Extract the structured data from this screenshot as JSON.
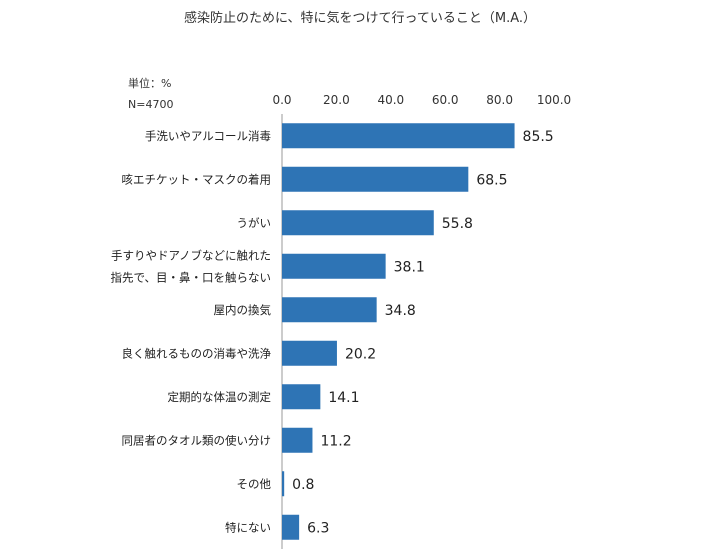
{
  "chart_data": {
    "type": "bar",
    "orientation": "horizontal",
    "title": "感染防止のために、特に気をつけて行っていること（M.A.）",
    "unit_note": "単位：%",
    "sample_note": "N=4700",
    "xlim": [
      0,
      100
    ],
    "x_ticks": [
      "0.0",
      "20.0",
      "40.0",
      "60.0",
      "80.0",
      "100.0"
    ],
    "x_tick_values": [
      0,
      20,
      40,
      60,
      80,
      100
    ],
    "grid": false,
    "bar_color": "#2e74b5",
    "categories": [
      [
        "手洗いやアルコール消毒"
      ],
      [
        "咳エチケット・マスクの着用"
      ],
      [
        "うがい"
      ],
      [
        "手すりやドアノブなどに触れた",
        "指先で、目・鼻・口を触らない"
      ],
      [
        "屋内の換気"
      ],
      [
        "良く触れるものの消毒や洗浄"
      ],
      [
        "定期的な体温の測定"
      ],
      [
        "同居者のタオル類の使い分け"
      ],
      [
        "その他"
      ],
      [
        "特にない"
      ]
    ],
    "values": [
      85.5,
      68.5,
      55.8,
      38.1,
      34.8,
      20.2,
      14.1,
      11.2,
      0.8,
      6.3
    ],
    "value_labels": [
      "85.5",
      "68.5",
      "55.8",
      "38.1",
      "34.8",
      "20.2",
      "14.1",
      "11.2",
      "0.8",
      "6.3"
    ]
  }
}
